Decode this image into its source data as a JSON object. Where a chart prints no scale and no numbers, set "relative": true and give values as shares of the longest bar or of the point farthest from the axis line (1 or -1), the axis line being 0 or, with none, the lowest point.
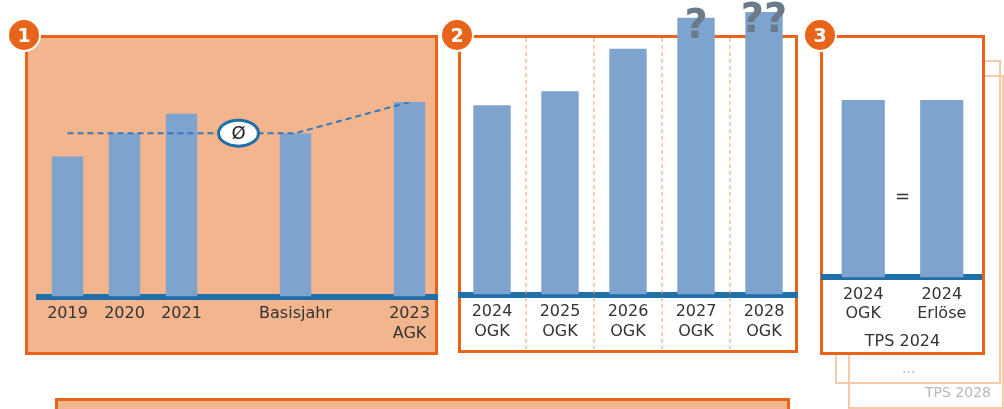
{
  "chart_data": [
    {
      "type": "bar",
      "title": "1",
      "relative": true,
      "tick_labels": "x",
      "legend": false,
      "categories": [
        "2019",
        "2020",
        "2021",
        null,
        "Basisjahr",
        null,
        "2023\nAGK"
      ],
      "series": [
        {
          "color": "#7fa3cf",
          "values": [
            0.72,
            0.84,
            0.94,
            null,
            0.84,
            null,
            1.0
          ]
        },
        {
          "type": "line",
          "color": "#3a78b8",
          "line_style": "dashed",
          "marker": "none",
          "values": [
            0.84,
            0.84,
            0.84,
            null,
            0.84,
            null,
            1.0
          ]
        }
      ],
      "annotations": [
        "Ø"
      ]
    },
    {
      "type": "bar",
      "title": "2",
      "relative": true,
      "tick_labels": "x",
      "legend": false,
      "grid": "x",
      "categories": [
        "2024\nOGK",
        "2025\nOGK",
        "2026\nOGK",
        "2027\nOGK",
        "2028\nOGK"
      ],
      "series": [
        {
          "color": "#7fa3cf",
          "values": [
            0.67,
            0.72,
            0.87,
            0.98,
            1.0
          ]
        }
      ],
      "annotations": [
        {
          "text": "?",
          "x": "2027\nOGK",
          "y": 0.98
        },
        {
          "text": "??",
          "x": "2028\nOGK",
          "y": 1.0
        }
      ]
    },
    {
      "type": "bar",
      "title": "3",
      "relative": true,
      "tick_labels": "x",
      "legend": false,
      "xlabel": "TPS 2024",
      "categories": [
        "2024\nOGK",
        "2024\nErlöse"
      ],
      "series": [
        {
          "color": "#7fa3cf",
          "values": [
            1.0,
            1.0
          ]
        }
      ],
      "annotations": [
        "=",
        "...",
        "TPS 2028"
      ]
    }
  ]
}
